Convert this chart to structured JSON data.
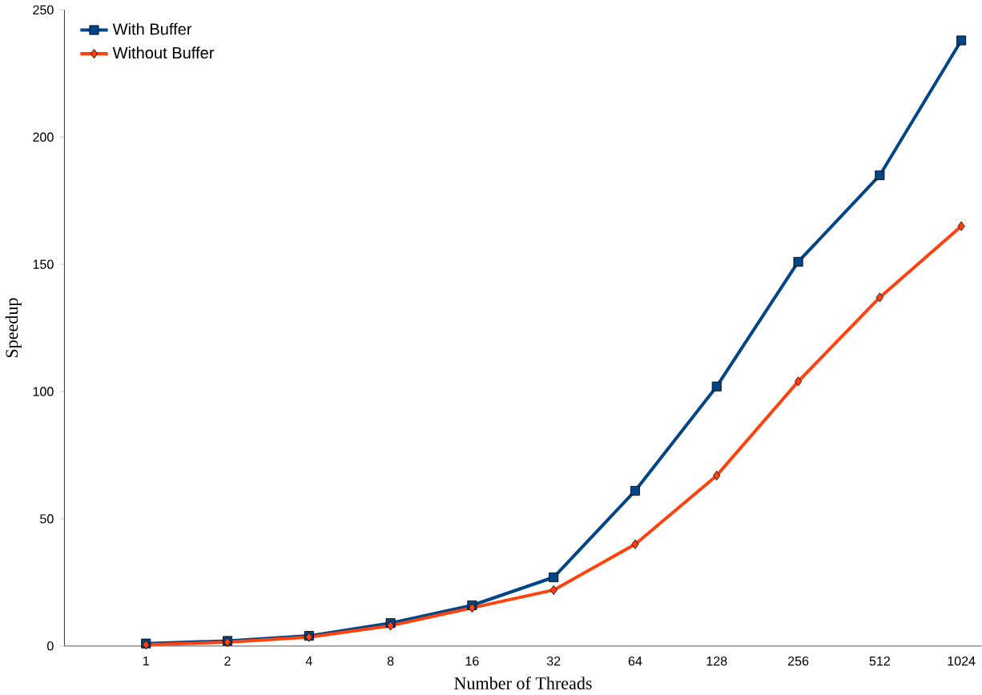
{
  "chart_data": {
    "type": "line",
    "xlabel": "Number of Threads",
    "ylabel": "Speedup",
    "categories": [
      "1",
      "2",
      "4",
      "8",
      "16",
      "32",
      "64",
      "128",
      "256",
      "512",
      "1024"
    ],
    "series": [
      {
        "name": "With Buffer",
        "color": "#004586",
        "marker": "square",
        "values": [
          1,
          2,
          4,
          9,
          16,
          27,
          61,
          102,
          151,
          185,
          238
        ]
      },
      {
        "name": "Without Buffer",
        "color": "#ff420e",
        "marker": "diamond",
        "values": [
          0.5,
          1.5,
          3.5,
          8,
          15,
          22,
          40,
          67,
          104,
          137,
          165
        ]
      }
    ],
    "ylim": [
      0,
      250
    ],
    "yticks": [
      0,
      50,
      100,
      150,
      200,
      250
    ],
    "legend": "top left",
    "grid": false
  }
}
